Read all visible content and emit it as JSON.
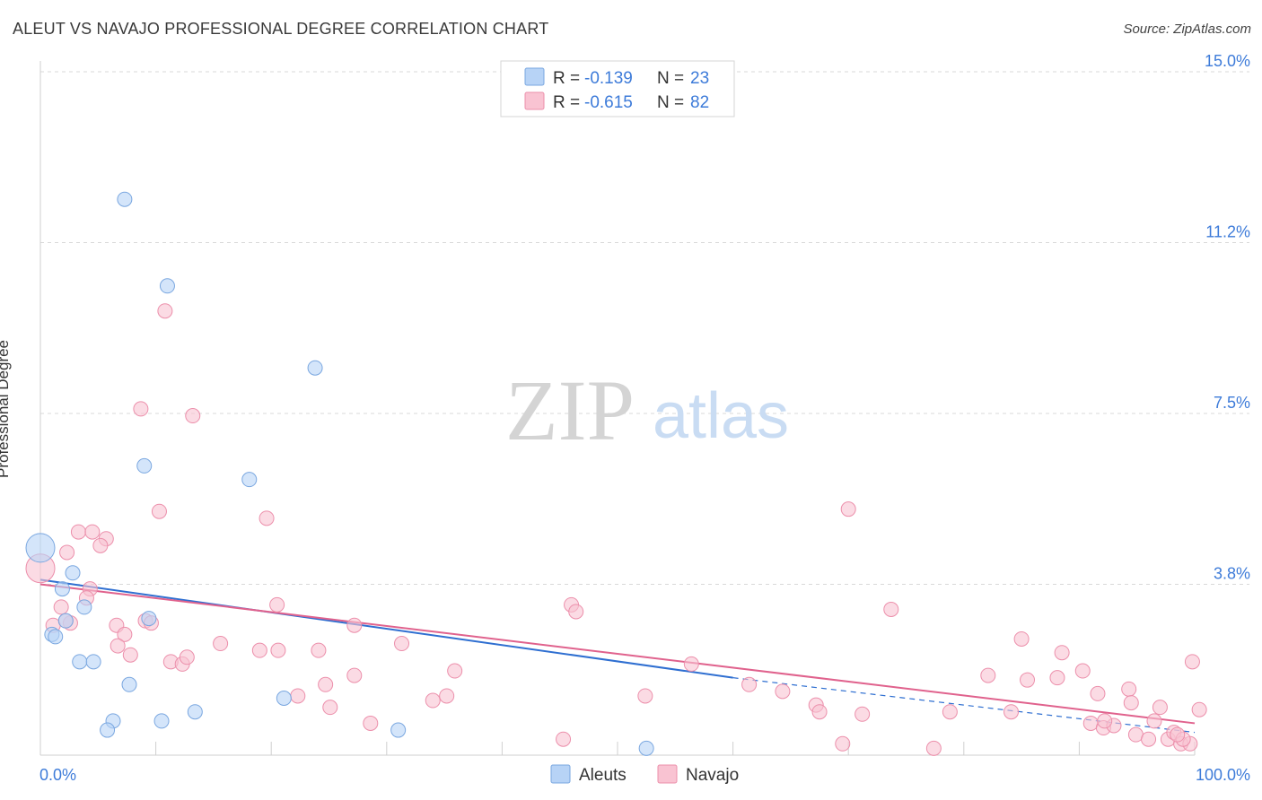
{
  "title": "ALEUT VS NAVAJO PROFESSIONAL DEGREE CORRELATION CHART",
  "source": "Source: ZipAtlas.com",
  "watermark": {
    "zip": "ZIP",
    "atlas": "atlas"
  },
  "colors": {
    "aleut_fill": "#b7d3f6",
    "aleut_stroke": "#7aa7e0",
    "aleut_line": "#2f6fd1",
    "navajo_fill": "#f9c3d2",
    "navajo_stroke": "#ec8fab",
    "navajo_line": "#e0628d",
    "tick_label": "#3d7bd9",
    "grid": "#d9d9d9"
  },
  "legend_top": [
    {
      "r_label": "R =",
      "r_value": "-0.139",
      "n_label": "N =",
      "n_value": "23"
    },
    {
      "r_label": "R =",
      "r_value": "-0.615",
      "n_label": "N =",
      "n_value": "82"
    }
  ],
  "legend_bottom": [
    "Aleuts",
    "Navajo"
  ],
  "chart_data": {
    "type": "scatter",
    "title": "ALEUT VS NAVAJO PROFESSIONAL DEGREE CORRELATION CHART",
    "xlabel": "",
    "ylabel": "Professional Degree",
    "xlim": [
      0,
      100
    ],
    "ylim": [
      0,
      15
    ],
    "y_ticks": [
      {
        "value": 3.75,
        "label": "3.8%"
      },
      {
        "value": 7.5,
        "label": "7.5%"
      },
      {
        "value": 11.25,
        "label": "11.2%"
      },
      {
        "value": 15.0,
        "label": "15.0%"
      }
    ],
    "x_tick_labels": {
      "min": "0.0%",
      "max": "100.0%"
    },
    "x_ticks": [
      0,
      10,
      20,
      30,
      40,
      50,
      60,
      70,
      80,
      90,
      100
    ],
    "legend_position": "top-center",
    "series": [
      {
        "name": "Aleuts",
        "r": -0.139,
        "n": 23,
        "trend": {
          "x0": 0,
          "y0": 3.85,
          "x1": 60,
          "y1": 1.7,
          "dash_x1": 100,
          "dash_y1": 0.5
        },
        "points": [
          [
            0,
            4.55,
            2.0
          ],
          [
            2.8,
            4.0,
            1
          ],
          [
            1.9,
            3.65,
            1
          ],
          [
            3.8,
            3.25,
            1
          ],
          [
            2.2,
            2.95,
            1
          ],
          [
            1.0,
            2.65,
            1
          ],
          [
            1.3,
            2.6,
            1
          ],
          [
            7.3,
            12.2,
            1
          ],
          [
            11.0,
            10.3,
            1
          ],
          [
            23.8,
            8.5,
            1
          ],
          [
            9.0,
            6.35,
            1
          ],
          [
            18.1,
            6.05,
            1
          ],
          [
            9.4,
            3.0,
            1
          ],
          [
            3.4,
            2.05,
            1
          ],
          [
            4.6,
            2.05,
            1
          ],
          [
            7.7,
            1.55,
            1
          ],
          [
            6.3,
            0.75,
            1
          ],
          [
            5.8,
            0.55,
            1
          ],
          [
            10.5,
            0.75,
            1
          ],
          [
            13.4,
            0.95,
            1
          ],
          [
            21.1,
            1.25,
            1
          ],
          [
            31.0,
            0.55,
            1
          ],
          [
            52.5,
            0.15,
            1
          ]
        ]
      },
      {
        "name": "Navajo",
        "r": -0.615,
        "n": 82,
        "trend": {
          "x0": 0,
          "y0": 3.75,
          "x1": 100,
          "y1": 0.7
        },
        "points": [
          [
            0,
            4.1,
            2.0
          ],
          [
            1.1,
            2.85,
            1
          ],
          [
            2.6,
            2.9,
            1
          ],
          [
            1.8,
            3.25,
            1
          ],
          [
            2.3,
            4.45,
            1
          ],
          [
            3.3,
            4.9,
            1
          ],
          [
            4.5,
            4.9,
            1
          ],
          [
            5.7,
            4.75,
            1
          ],
          [
            5.2,
            4.6,
            1
          ],
          [
            4.3,
            3.65,
            1
          ],
          [
            4.0,
            3.45,
            1
          ],
          [
            2.2,
            2.95,
            1
          ],
          [
            8.7,
            7.6,
            1
          ],
          [
            10.8,
            9.75,
            1
          ],
          [
            13.2,
            7.45,
            1
          ],
          [
            10.3,
            5.35,
            1
          ],
          [
            19.6,
            5.2,
            1
          ],
          [
            6.6,
            2.85,
            1
          ],
          [
            7.3,
            2.65,
            1
          ],
          [
            6.7,
            2.4,
            1
          ],
          [
            7.8,
            2.2,
            1
          ],
          [
            9.1,
            2.95,
            1
          ],
          [
            9.6,
            2.9,
            1
          ],
          [
            11.3,
            2.05,
            1
          ],
          [
            12.3,
            2.0,
            1
          ],
          [
            12.7,
            2.15,
            1
          ],
          [
            15.6,
            2.45,
            1
          ],
          [
            19.0,
            2.3,
            1
          ],
          [
            20.5,
            3.3,
            1
          ],
          [
            20.6,
            2.3,
            1
          ],
          [
            24.1,
            2.3,
            1
          ],
          [
            27.2,
            2.85,
            1
          ],
          [
            22.3,
            1.3,
            1
          ],
          [
            24.7,
            1.55,
            1
          ],
          [
            25.1,
            1.05,
            1
          ],
          [
            27.2,
            1.75,
            1
          ],
          [
            28.6,
            0.7,
            1
          ],
          [
            31.3,
            2.45,
            1
          ],
          [
            34.0,
            1.2,
            1
          ],
          [
            35.2,
            1.3,
            1
          ],
          [
            35.9,
            1.85,
            1
          ],
          [
            46.0,
            3.3,
            1
          ],
          [
            46.4,
            3.15,
            1
          ],
          [
            45.3,
            0.35,
            1
          ],
          [
            52.4,
            1.3,
            1
          ],
          [
            56.4,
            2.0,
            1
          ],
          [
            61.4,
            1.55,
            1
          ],
          [
            64.3,
            1.4,
            1
          ],
          [
            67.2,
            1.1,
            1
          ],
          [
            67.5,
            0.95,
            1
          ],
          [
            70.0,
            5.4,
            1
          ],
          [
            69.5,
            0.25,
            1
          ],
          [
            71.2,
            0.9,
            1
          ],
          [
            73.7,
            3.2,
            1
          ],
          [
            77.4,
            0.15,
            1
          ],
          [
            78.8,
            0.95,
            1
          ],
          [
            82.1,
            1.75,
            1
          ],
          [
            85.5,
            1.65,
            1
          ],
          [
            85.0,
            2.55,
            1
          ],
          [
            84.1,
            0.95,
            1
          ],
          [
            88.1,
            1.7,
            1
          ],
          [
            88.5,
            2.25,
            1
          ],
          [
            90.3,
            1.85,
            1
          ],
          [
            91.0,
            0.7,
            1
          ],
          [
            91.6,
            1.35,
            1
          ],
          [
            92.1,
            0.6,
            1
          ],
          [
            93.0,
            0.65,
            1
          ],
          [
            92.2,
            0.75,
            1
          ],
          [
            94.3,
            1.45,
            1
          ],
          [
            94.5,
            1.15,
            1
          ],
          [
            94.9,
            0.45,
            1
          ],
          [
            96.0,
            0.35,
            1
          ],
          [
            96.5,
            0.75,
            1
          ],
          [
            97.0,
            1.05,
            1
          ],
          [
            97.7,
            0.35,
            1
          ],
          [
            98.2,
            0.5,
            1
          ],
          [
            98.8,
            0.25,
            1
          ],
          [
            99.6,
            0.25,
            1
          ],
          [
            99.8,
            2.05,
            1
          ],
          [
            100.4,
            1.0,
            1
          ],
          [
            99.0,
            0.35,
            1
          ],
          [
            98.5,
            0.45,
            1
          ]
        ]
      }
    ]
  }
}
